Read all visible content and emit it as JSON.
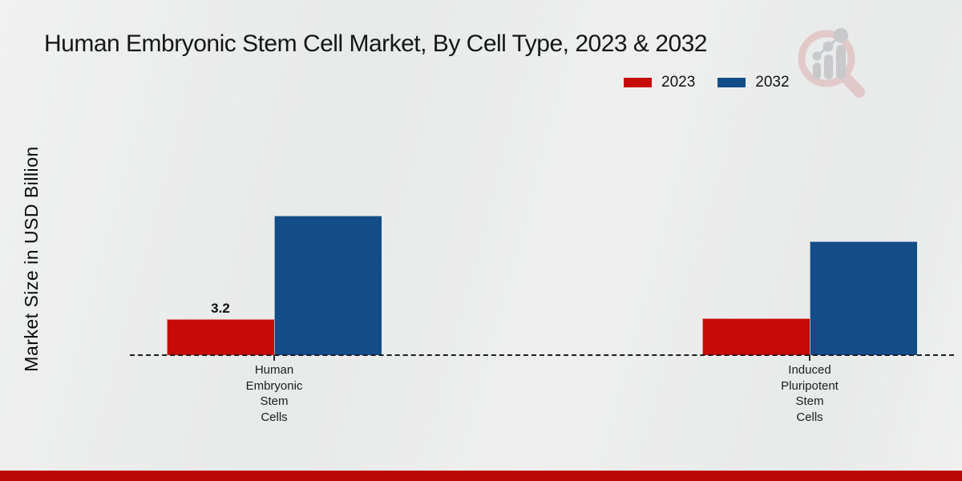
{
  "page": {
    "title": "Human Embryonic Stem Cell Market, By Cell Type, 2023 & 2032",
    "ylabel": "Market Size in USD Billion",
    "watermark": "magnifier-bar-chart-logo",
    "colors": {
      "red_2023": "#c60b06",
      "blue_2032": "#124d87",
      "footer": "#bb0a06",
      "background": "#ebecec",
      "text": "#161616"
    }
  },
  "legend": {
    "items": [
      {
        "label": "2023",
        "color": "#c60b06"
      },
      {
        "label": "2032",
        "color": "#124d87"
      }
    ]
  },
  "chart_data": {
    "type": "bar",
    "title": "Human Embryonic Stem Cell Market, By Cell Type, 2023 & 2032",
    "xlabel": "",
    "ylabel": "Market Size in USD Billion",
    "categories": [
      "Human Embryonic Stem Cells",
      "Induced Pluripotent Stem Cells"
    ],
    "series": [
      {
        "name": "2023",
        "color": "#c60b06",
        "values": [
          3.2,
          3.25
        ],
        "labels": [
          "3.2",
          ""
        ]
      },
      {
        "name": "2032",
        "color": "#124d87",
        "values": [
          12.4,
          10.1
        ],
        "labels": [
          "",
          ""
        ]
      }
    ],
    "visible_value_labels": [
      "3.2"
    ],
    "baseline_style": "dashed",
    "grid": false,
    "legend_position": "top-right",
    "ylim": [
      0,
      14
    ]
  }
}
